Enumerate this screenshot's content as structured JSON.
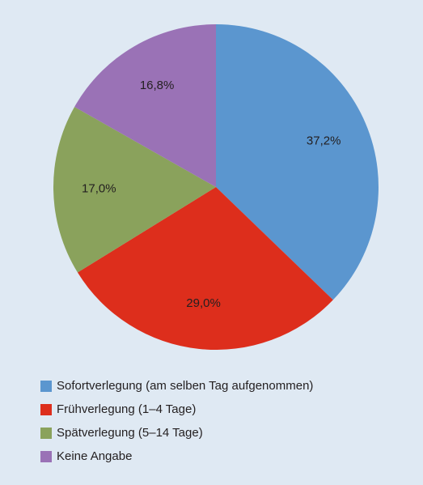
{
  "chart_data": {
    "type": "pie",
    "categories": [
      "Sofortverlegung (am selben Tag aufgenommen)",
      "Frühverlegung (1–4 Tage)",
      "Spätverlegung (5–14 Tage)",
      "Keine Angabe"
    ],
    "values": [
      37.2,
      29.0,
      17.0,
      16.8
    ],
    "value_labels": [
      "37,2%",
      "29,0%",
      "17,0%",
      "16,8%"
    ],
    "colors": [
      "#5b96cf",
      "#dd2e1c",
      "#8aa25c",
      "#9a72b6"
    ],
    "legend": "bottom"
  }
}
